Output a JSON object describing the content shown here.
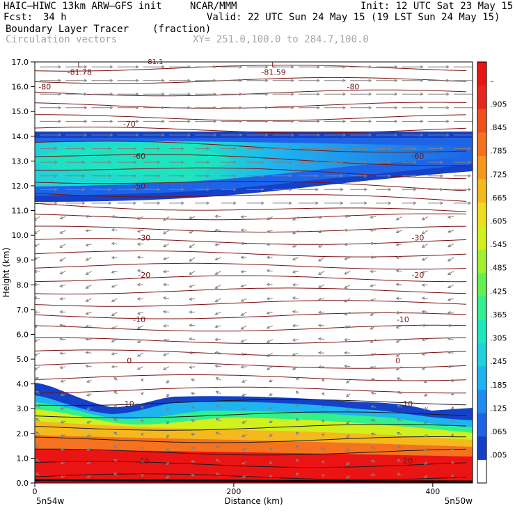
{
  "header": {
    "model": "HAIC–HIWC 13km ARW–GFS init",
    "org": "NCAR/MMM",
    "init": "Init: 12 UTC Sat 23 May 15",
    "fcst_label": "Fcst:",
    "fcst_value": "34 h",
    "valid": "Valid: 22 UTC Sun 24 May 15 (19 LST Sun 24 May 15)",
    "field": "Boundary Layer Tracer",
    "units": "(fraction)",
    "vectors": "Circulation vectors",
    "xsec": "XY= 251.0,100.0 to 284.7,100.0"
  },
  "chart_data": {
    "type": "heatmap",
    "xlabel": "Distance (km)",
    "ylabel": "Height (km)",
    "x_ticks": [
      "0",
      "200",
      "400"
    ],
    "x_start_label": "5n54w",
    "x_end_label": "5n50w",
    "y_ticks": [
      "0.0",
      "1.0",
      "2.0",
      "3.0",
      "4.0",
      "5.0",
      "6.0",
      "7.0",
      "8.0",
      "9.0",
      "10.0",
      "11.0",
      "12.0",
      "13.0",
      "14.0",
      "15.0",
      "16.0",
      "17.0"
    ],
    "xlim": [
      0,
      440
    ],
    "ylim": [
      0,
      17
    ],
    "colorbar": {
      "labels": [
        ".005",
        ".065",
        ".125",
        ".185",
        ".245",
        ".305",
        ".365",
        ".425",
        ".485",
        ".545",
        ".605",
        ".665",
        ".725",
        ".785",
        ".845",
        ".905",
        "–"
      ],
      "colors": [
        "#ffffff",
        "#1441c8",
        "#1e64e6",
        "#1e8cf0",
        "#1eb4f0",
        "#1ed2dc",
        "#1ee6be",
        "#32f08c",
        "#64f050",
        "#a0f032",
        "#d2f01e",
        "#f0dc1e",
        "#f5b91e",
        "#f5961e",
        "#f5731e",
        "#f0501e",
        "#e6281e",
        "#eb1414"
      ]
    },
    "contour_labels": [
      {
        "text": "-80",
        "x": 10,
        "y": 16.0
      },
      {
        "text": "-80",
        "x": 320,
        "y": 16.0
      },
      {
        "text": "-70",
        "x": 95,
        "y": 14.5
      },
      {
        "text": "-60",
        "x": 105,
        "y": 13.2
      },
      {
        "text": "-60",
        "x": 385,
        "y": 13.2
      },
      {
        "text": "-50",
        "x": 105,
        "y": 12.0
      },
      {
        "text": "-30",
        "x": 110,
        "y": 9.9
      },
      {
        "text": "-30",
        "x": 385,
        "y": 9.9
      },
      {
        "text": "-20",
        "x": 110,
        "y": 8.4
      },
      {
        "text": "-20",
        "x": 385,
        "y": 8.4
      },
      {
        "text": "-10",
        "x": 105,
        "y": 6.6
      },
      {
        "text": "-10",
        "x": 370,
        "y": 6.6
      },
      {
        "text": "0",
        "x": 95,
        "y": 4.95
      },
      {
        "text": "0",
        "x": 365,
        "y": 4.95
      },
      {
        "text": "10",
        "x": 95,
        "y": 3.2
      },
      {
        "text": "10",
        "x": 375,
        "y": 3.2
      },
      {
        "text": "20",
        "x": 110,
        "y": 0.9
      },
      {
        "text": "20",
        "x": 375,
        "y": 0.9
      }
    ],
    "low_markers": [
      {
        "text": "L",
        "value": "-81.78",
        "x": 45,
        "y": 16.9
      },
      {
        "text": "L",
        "value": "-81.59",
        "x": 240,
        "y": 16.9
      }
    ],
    "top_partial_label": "-81.1"
  }
}
